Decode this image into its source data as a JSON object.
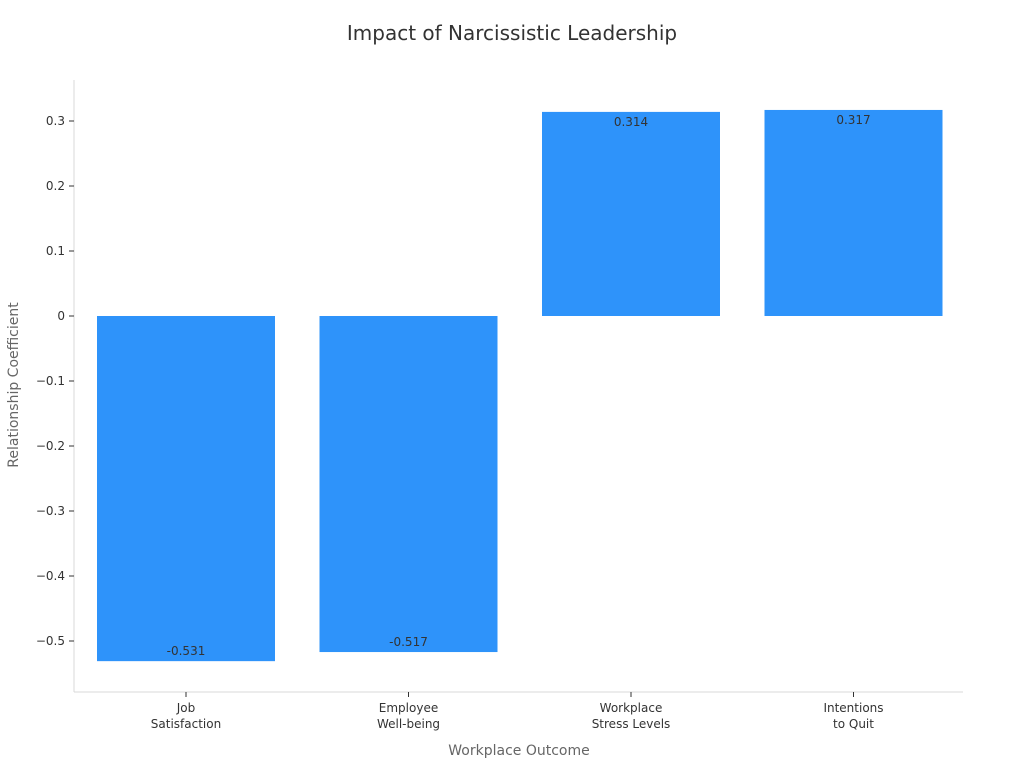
{
  "chart_data": {
    "type": "bar",
    "title": "Impact of Narcissistic Leadership",
    "xlabel": "Workplace Outcome",
    "ylabel": "Relationship Coefficient",
    "categories": [
      [
        "Job",
        "Satisfaction"
      ],
      [
        "Employee",
        "Well-being"
      ],
      [
        "Workplace",
        "Stress Levels"
      ],
      [
        "Intentions",
        "to Quit"
      ]
    ],
    "values": [
      -0.531,
      -0.517,
      0.314,
      0.317
    ],
    "data_labels": [
      "-0.531",
      "-0.517",
      "0.314",
      "0.317"
    ],
    "yticks": [
      0.3,
      0.2,
      0.1,
      0,
      -0.1,
      -0.2,
      -0.3,
      -0.4,
      -0.5
    ],
    "ytick_labels": [
      "0.3",
      "0.2",
      "0.1",
      "0",
      "−0.1",
      "−0.2",
      "−0.3",
      "−0.4",
      "−0.5"
    ],
    "ylim": [
      -0.58,
      0.364
    ],
    "bar_color": "#2e93fa",
    "grid": false,
    "legend": "none"
  }
}
